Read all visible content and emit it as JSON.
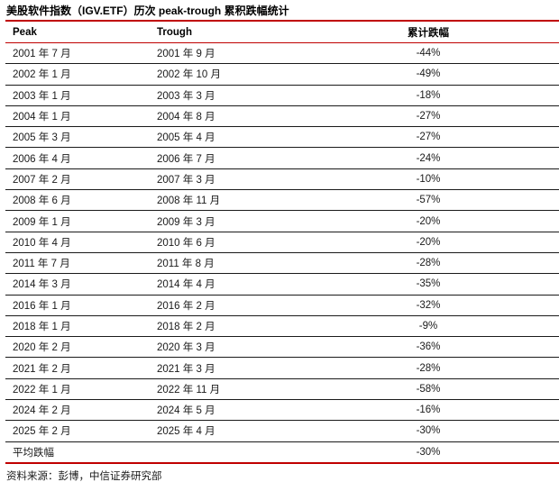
{
  "title": "美股软件指数（IGV.ETF）历次 peak-trough 累积跌幅统计",
  "colors": {
    "accent_red": "#c00000",
    "separator": "#1a1a1a",
    "text": "#1a1a1a"
  },
  "table": {
    "headers": [
      "Peak",
      "Trough",
      "累计跌幅"
    ],
    "rows": [
      {
        "peak": "2001 年 7 月",
        "trough": "2001 年 9 月",
        "drawdown": "-44%"
      },
      {
        "peak": "2002 年 1 月",
        "trough": "2002 年 10 月",
        "drawdown": "-49%"
      },
      {
        "peak": "2003 年 1 月",
        "trough": "2003 年 3 月",
        "drawdown": "-18%"
      },
      {
        "peak": "2004 年 1 月",
        "trough": "2004 年 8 月",
        "drawdown": "-27%"
      },
      {
        "peak": "2005 年 3 月",
        "trough": "2005 年 4 月",
        "drawdown": "-27%"
      },
      {
        "peak": "2006 年 4 月",
        "trough": "2006 年 7 月",
        "drawdown": "-24%"
      },
      {
        "peak": "2007 年 2 月",
        "trough": "2007 年 3 月",
        "drawdown": "-10%"
      },
      {
        "peak": "2008 年 6 月",
        "trough": "2008 年 11 月",
        "drawdown": "-57%"
      },
      {
        "peak": "2009 年 1 月",
        "trough": "2009 年 3 月",
        "drawdown": "-20%"
      },
      {
        "peak": "2010 年 4 月",
        "trough": "2010 年 6 月",
        "drawdown": "-20%"
      },
      {
        "peak": "2011 年 7 月",
        "trough": "2011 年 8 月",
        "drawdown": "-28%"
      },
      {
        "peak": "2014 年 3 月",
        "trough": "2014 年 4 月",
        "drawdown": "-35%"
      },
      {
        "peak": "2016 年 1 月",
        "trough": "2016 年 2 月",
        "drawdown": "-32%"
      },
      {
        "peak": "2018 年 1 月",
        "trough": "2018 年 2 月",
        "drawdown": "-9%"
      },
      {
        "peak": "2020 年 2 月",
        "trough": "2020 年 3 月",
        "drawdown": "-36%"
      },
      {
        "peak": "2021 年 2 月",
        "trough": "2021 年 3 月",
        "drawdown": "-28%"
      },
      {
        "peak": "2022 年 1 月",
        "trough": "2022 年 11 月",
        "drawdown": "-58%"
      },
      {
        "peak": "2024 年 2 月",
        "trough": "2024 年 5 月",
        "drawdown": "-16%"
      },
      {
        "peak": "2025 年 2 月",
        "trough": "2025 年 4 月",
        "drawdown": "-30%"
      }
    ],
    "summary": {
      "label": "平均跌幅",
      "trough": "",
      "value": "-30%"
    }
  },
  "footer": {
    "source_label": "资料来源：彭博，中信证券研究部"
  }
}
